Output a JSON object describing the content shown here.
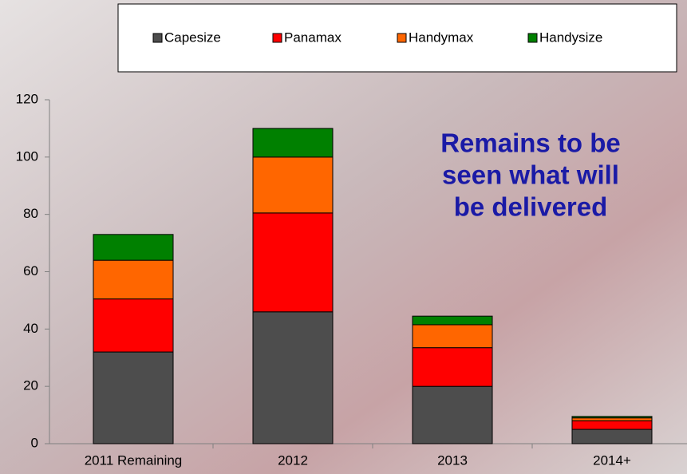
{
  "chart_data": {
    "type": "bar",
    "stacked": true,
    "annotation": [
      "Remains to be",
      "seen what will",
      "be delivered"
    ],
    "categories": [
      "2011 Remaining",
      "2012",
      "2013",
      "2014+"
    ],
    "series": [
      {
        "name": "Capesize",
        "color": "#4d4d4d",
        "values": [
          32,
          46,
          20,
          5
        ]
      },
      {
        "name": "Panamax",
        "color": "#ff0000",
        "values": [
          18.5,
          34.5,
          13.5,
          3
        ]
      },
      {
        "name": "Handymax",
        "color": "#ff6600",
        "values": [
          13.5,
          19.5,
          8,
          1
        ]
      },
      {
        "name": "Handysize",
        "color": "#008000",
        "values": [
          9,
          10,
          3,
          0.5
        ]
      }
    ],
    "ylim": [
      0,
      120
    ],
    "yticks": [
      0,
      20,
      40,
      60,
      80,
      100,
      120
    ],
    "grid": false
  }
}
